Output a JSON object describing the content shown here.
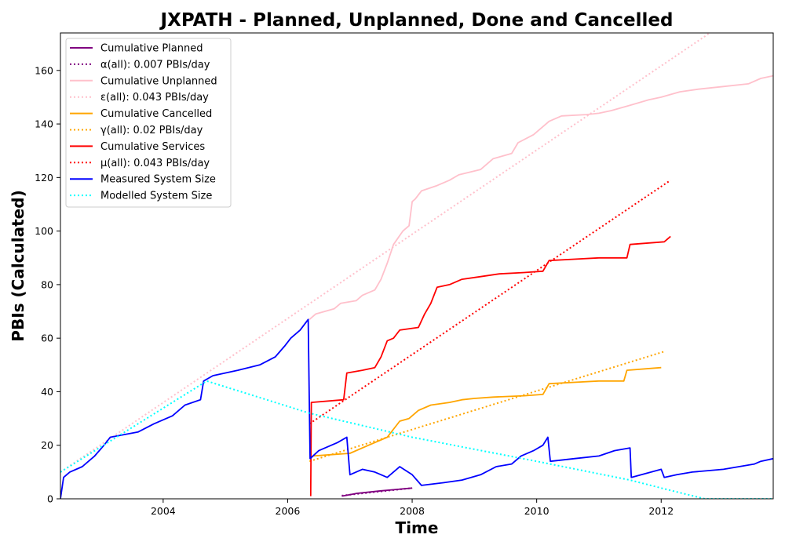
{
  "chart_data": {
    "type": "line",
    "title": "JXPATH - Planned, Unplanned, Done  and Cancelled",
    "xlabel": "Time",
    "ylabel": "PBIs (Calculated)",
    "xlim": [
      2002.35,
      2013.8
    ],
    "ylim": [
      0,
      174
    ],
    "xticks": [
      2004,
      2006,
      2008,
      2010,
      2012
    ],
    "yticks": [
      0,
      20,
      40,
      60,
      80,
      100,
      120,
      140,
      160
    ],
    "grid": false,
    "legend_position": "top-left",
    "series": [
      {
        "name": "Cumulative Planned",
        "color": "#800080",
        "style": "solid",
        "points": [
          [
            2006.87,
            1
          ],
          [
            2007.1,
            2
          ],
          [
            2007.5,
            3
          ],
          [
            2008.0,
            4
          ]
        ]
      },
      {
        "name": "α(all): 0.007 PBIs/day",
        "color": "#800080",
        "style": "dotted",
        "points": [
          [
            2006.87,
            1.2
          ],
          [
            2008.0,
            4
          ]
        ]
      },
      {
        "name": "Cumulative Unplanned",
        "color": "#ffc0cb",
        "style": "solid",
        "points": [
          [
            2006.35,
            67
          ],
          [
            2006.45,
            69
          ],
          [
            2006.6,
            70
          ],
          [
            2006.75,
            71
          ],
          [
            2006.85,
            73
          ],
          [
            2007.1,
            74
          ],
          [
            2007.2,
            76
          ],
          [
            2007.4,
            78
          ],
          [
            2007.5,
            82
          ],
          [
            2007.6,
            88
          ],
          [
            2007.7,
            95
          ],
          [
            2007.85,
            100
          ],
          [
            2007.95,
            102
          ],
          [
            2008.0,
            111
          ],
          [
            2008.05,
            112
          ],
          [
            2008.15,
            115
          ],
          [
            2008.4,
            117
          ],
          [
            2008.6,
            119
          ],
          [
            2008.75,
            121
          ],
          [
            2009.1,
            123
          ],
          [
            2009.3,
            127
          ],
          [
            2009.6,
            129
          ],
          [
            2009.7,
            133
          ],
          [
            2009.95,
            136
          ],
          [
            2010.2,
            141
          ],
          [
            2010.4,
            143
          ],
          [
            2010.8,
            143.5
          ],
          [
            2011.0,
            144
          ],
          [
            2011.2,
            145
          ],
          [
            2011.5,
            147
          ],
          [
            2011.8,
            149
          ],
          [
            2012.0,
            150
          ],
          [
            2012.3,
            152
          ],
          [
            2012.6,
            153
          ],
          [
            2013.0,
            154
          ],
          [
            2013.4,
            155
          ],
          [
            2013.6,
            157
          ],
          [
            2013.8,
            158
          ]
        ]
      },
      {
        "name": "ε(all): 0.043 PBIs/day",
        "color": "#ffc0cb",
        "style": "dotted",
        "points": [
          [
            2002.35,
            10
          ],
          [
            2013.8,
            190
          ]
        ]
      },
      {
        "name": "Cumulative Cancelled",
        "color": "#ffa500",
        "style": "solid",
        "points": [
          [
            2006.4,
            16
          ],
          [
            2006.7,
            16.5
          ],
          [
            2007.0,
            17
          ],
          [
            2007.3,
            20
          ],
          [
            2007.6,
            23
          ],
          [
            2007.8,
            29
          ],
          [
            2007.95,
            30
          ],
          [
            2008.1,
            33
          ],
          [
            2008.3,
            35
          ],
          [
            2008.6,
            36
          ],
          [
            2008.8,
            37
          ],
          [
            2009.0,
            37.5
          ],
          [
            2009.3,
            38
          ],
          [
            2009.8,
            38.5
          ],
          [
            2010.1,
            39
          ],
          [
            2010.2,
            43
          ],
          [
            2010.6,
            43.5
          ],
          [
            2011.0,
            44
          ],
          [
            2011.4,
            44
          ],
          [
            2011.45,
            48
          ],
          [
            2012.0,
            49
          ]
        ]
      },
      {
        "name": "γ(all): 0.02 PBIs/day",
        "color": "#ffa500",
        "style": "dotted",
        "points": [
          [
            2006.35,
            14
          ],
          [
            2012.05,
            55
          ]
        ]
      },
      {
        "name": "Cumulative Services",
        "color": "#ff0000",
        "style": "solid",
        "points": [
          [
            2006.37,
            1
          ],
          [
            2006.38,
            36
          ],
          [
            2006.9,
            37
          ],
          [
            2006.95,
            47
          ],
          [
            2007.2,
            48
          ],
          [
            2007.4,
            49
          ],
          [
            2007.5,
            53
          ],
          [
            2007.6,
            59
          ],
          [
            2007.7,
            60
          ],
          [
            2007.8,
            63
          ],
          [
            2008.1,
            64
          ],
          [
            2008.2,
            69
          ],
          [
            2008.3,
            73
          ],
          [
            2008.4,
            79
          ],
          [
            2008.6,
            80
          ],
          [
            2008.8,
            82
          ],
          [
            2009.1,
            83
          ],
          [
            2009.4,
            84
          ],
          [
            2009.8,
            84.5
          ],
          [
            2010.1,
            85
          ],
          [
            2010.2,
            89
          ],
          [
            2010.6,
            89.5
          ],
          [
            2011.0,
            90
          ],
          [
            2011.45,
            90
          ],
          [
            2011.5,
            95
          ],
          [
            2012.05,
            96
          ],
          [
            2012.15,
            98
          ]
        ]
      },
      {
        "name": "μ(all): 0.043 PBIs/day",
        "color": "#ff0000",
        "style": "dotted",
        "points": [
          [
            2006.35,
            28
          ],
          [
            2012.15,
            119
          ]
        ]
      },
      {
        "name": "Measured System Size",
        "color": "#0000ff",
        "style": "solid",
        "points": [
          [
            2002.35,
            0
          ],
          [
            2002.4,
            8
          ],
          [
            2002.5,
            10
          ],
          [
            2002.7,
            12
          ],
          [
            2002.8,
            14
          ],
          [
            2002.9,
            16
          ],
          [
            2003.05,
            20
          ],
          [
            2003.15,
            23
          ],
          [
            2003.6,
            25
          ],
          [
            2003.85,
            28
          ],
          [
            2004.15,
            31
          ],
          [
            2004.35,
            35
          ],
          [
            2004.6,
            37
          ],
          [
            2004.65,
            44
          ],
          [
            2004.8,
            46
          ],
          [
            2005.2,
            48
          ],
          [
            2005.55,
            50
          ],
          [
            2005.8,
            53
          ],
          [
            2005.95,
            57
          ],
          [
            2006.05,
            60
          ],
          [
            2006.2,
            63
          ],
          [
            2006.33,
            67
          ],
          [
            2006.36,
            15
          ],
          [
            2006.5,
            18
          ],
          [
            2006.8,
            21
          ],
          [
            2006.95,
            23
          ],
          [
            2007.0,
            9
          ],
          [
            2007.2,
            11
          ],
          [
            2007.4,
            10
          ],
          [
            2007.6,
            8
          ],
          [
            2007.8,
            12
          ],
          [
            2008.0,
            9
          ],
          [
            2008.15,
            5
          ],
          [
            2008.5,
            6
          ],
          [
            2008.8,
            7
          ],
          [
            2009.1,
            9
          ],
          [
            2009.35,
            12
          ],
          [
            2009.6,
            13
          ],
          [
            2009.75,
            16
          ],
          [
            2009.95,
            18
          ],
          [
            2010.1,
            20
          ],
          [
            2010.18,
            23
          ],
          [
            2010.22,
            14
          ],
          [
            2010.6,
            15
          ],
          [
            2011.0,
            16
          ],
          [
            2011.25,
            18
          ],
          [
            2011.5,
            19
          ],
          [
            2011.52,
            8
          ],
          [
            2012.0,
            11
          ],
          [
            2012.05,
            8
          ],
          [
            2012.25,
            9
          ],
          [
            2012.5,
            10
          ],
          [
            2013.0,
            11
          ],
          [
            2013.5,
            13
          ],
          [
            2013.6,
            14
          ],
          [
            2013.8,
            15
          ]
        ]
      },
      {
        "name": "Modelled System Size",
        "color": "#00ffff",
        "style": "dotted",
        "points": [
          [
            2002.35,
            10
          ],
          [
            2004.7,
            44
          ],
          [
            2006.35,
            32
          ],
          [
            2008.0,
            23
          ],
          [
            2010.0,
            14
          ],
          [
            2011.5,
            7
          ],
          [
            2012.0,
            4
          ],
          [
            2012.7,
            0
          ],
          [
            2013.8,
            0
          ]
        ]
      }
    ]
  }
}
